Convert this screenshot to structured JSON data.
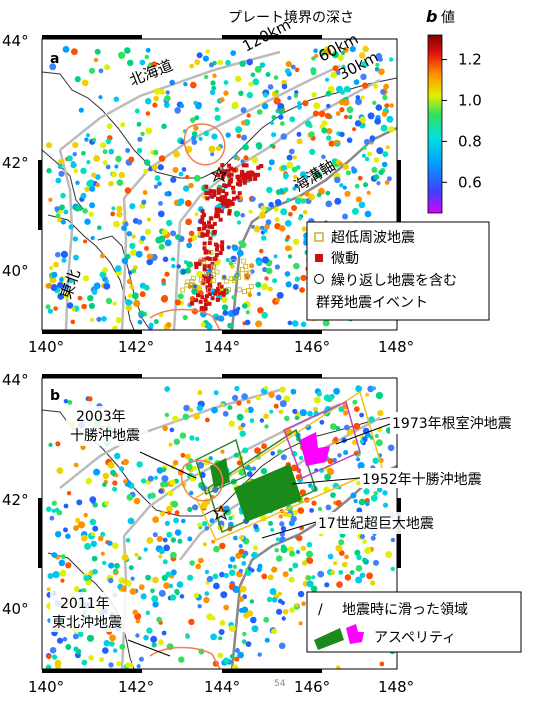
{
  "header": {
    "plate_depth_title": "プレート境界の深さ",
    "colorbar_title_b": "b",
    "colorbar_title_rest": "値"
  },
  "colorbar": {
    "ticks": [
      "1.2",
      "1.0",
      "0.8",
      "0.6"
    ],
    "min": 0.45,
    "max": 1.32
  },
  "axes": {
    "y_ticks_top": [
      "44°",
      "42°",
      "40°"
    ],
    "y_ticks_bottom": [
      "44°",
      "42°",
      "40°"
    ],
    "x_ticks_top": [
      "140°",
      "142°",
      "144°",
      "146°",
      "148°"
    ],
    "x_ticks_bottom": [
      "140°",
      "142°",
      "144°",
      "146°",
      "148°"
    ]
  },
  "panel_a": {
    "letter": "a",
    "depth_120": "120km",
    "depth_60": "60km",
    "depth_30": "30km",
    "hokkaido": "北海道",
    "tohoku": "東北",
    "trench_axis": "海溝軸",
    "legend": {
      "vlf": "超低周波地震",
      "tremor": "微動",
      "repeating_line1": "繰り返し地震を含む",
      "repeating_line2": "群発地震イベント"
    },
    "colors": {
      "vlf": "#e8e070",
      "tremor": "#cc1010"
    }
  },
  "panel_b": {
    "letter": "b",
    "tokachi2003_line1": "2003年",
    "tokachi2003_line2": "十勝沖地震",
    "nemuro1973": "1973年根室沖地震",
    "tokachi1952": "1952年十勝沖地震",
    "superquake17": "17世紀超巨大地震",
    "tohoku2011_line1": "2011年",
    "tohoku2011_line2": "東北沖地震",
    "legend": {
      "slip_symbol": "/",
      "slip_area": "地震時に滑った領域",
      "asperity": "アスペリティ"
    },
    "colors": {
      "asperity_green": "#1a8a1a",
      "asperity_magenta": "#ff00ff",
      "slip_1973": "#c040c0",
      "slip_1952": "#2a8a2a",
      "slip_17c": "#f0c020",
      "slip_2003": "#2a8a2a"
    }
  },
  "footer": {
    "page_number": "54"
  }
}
